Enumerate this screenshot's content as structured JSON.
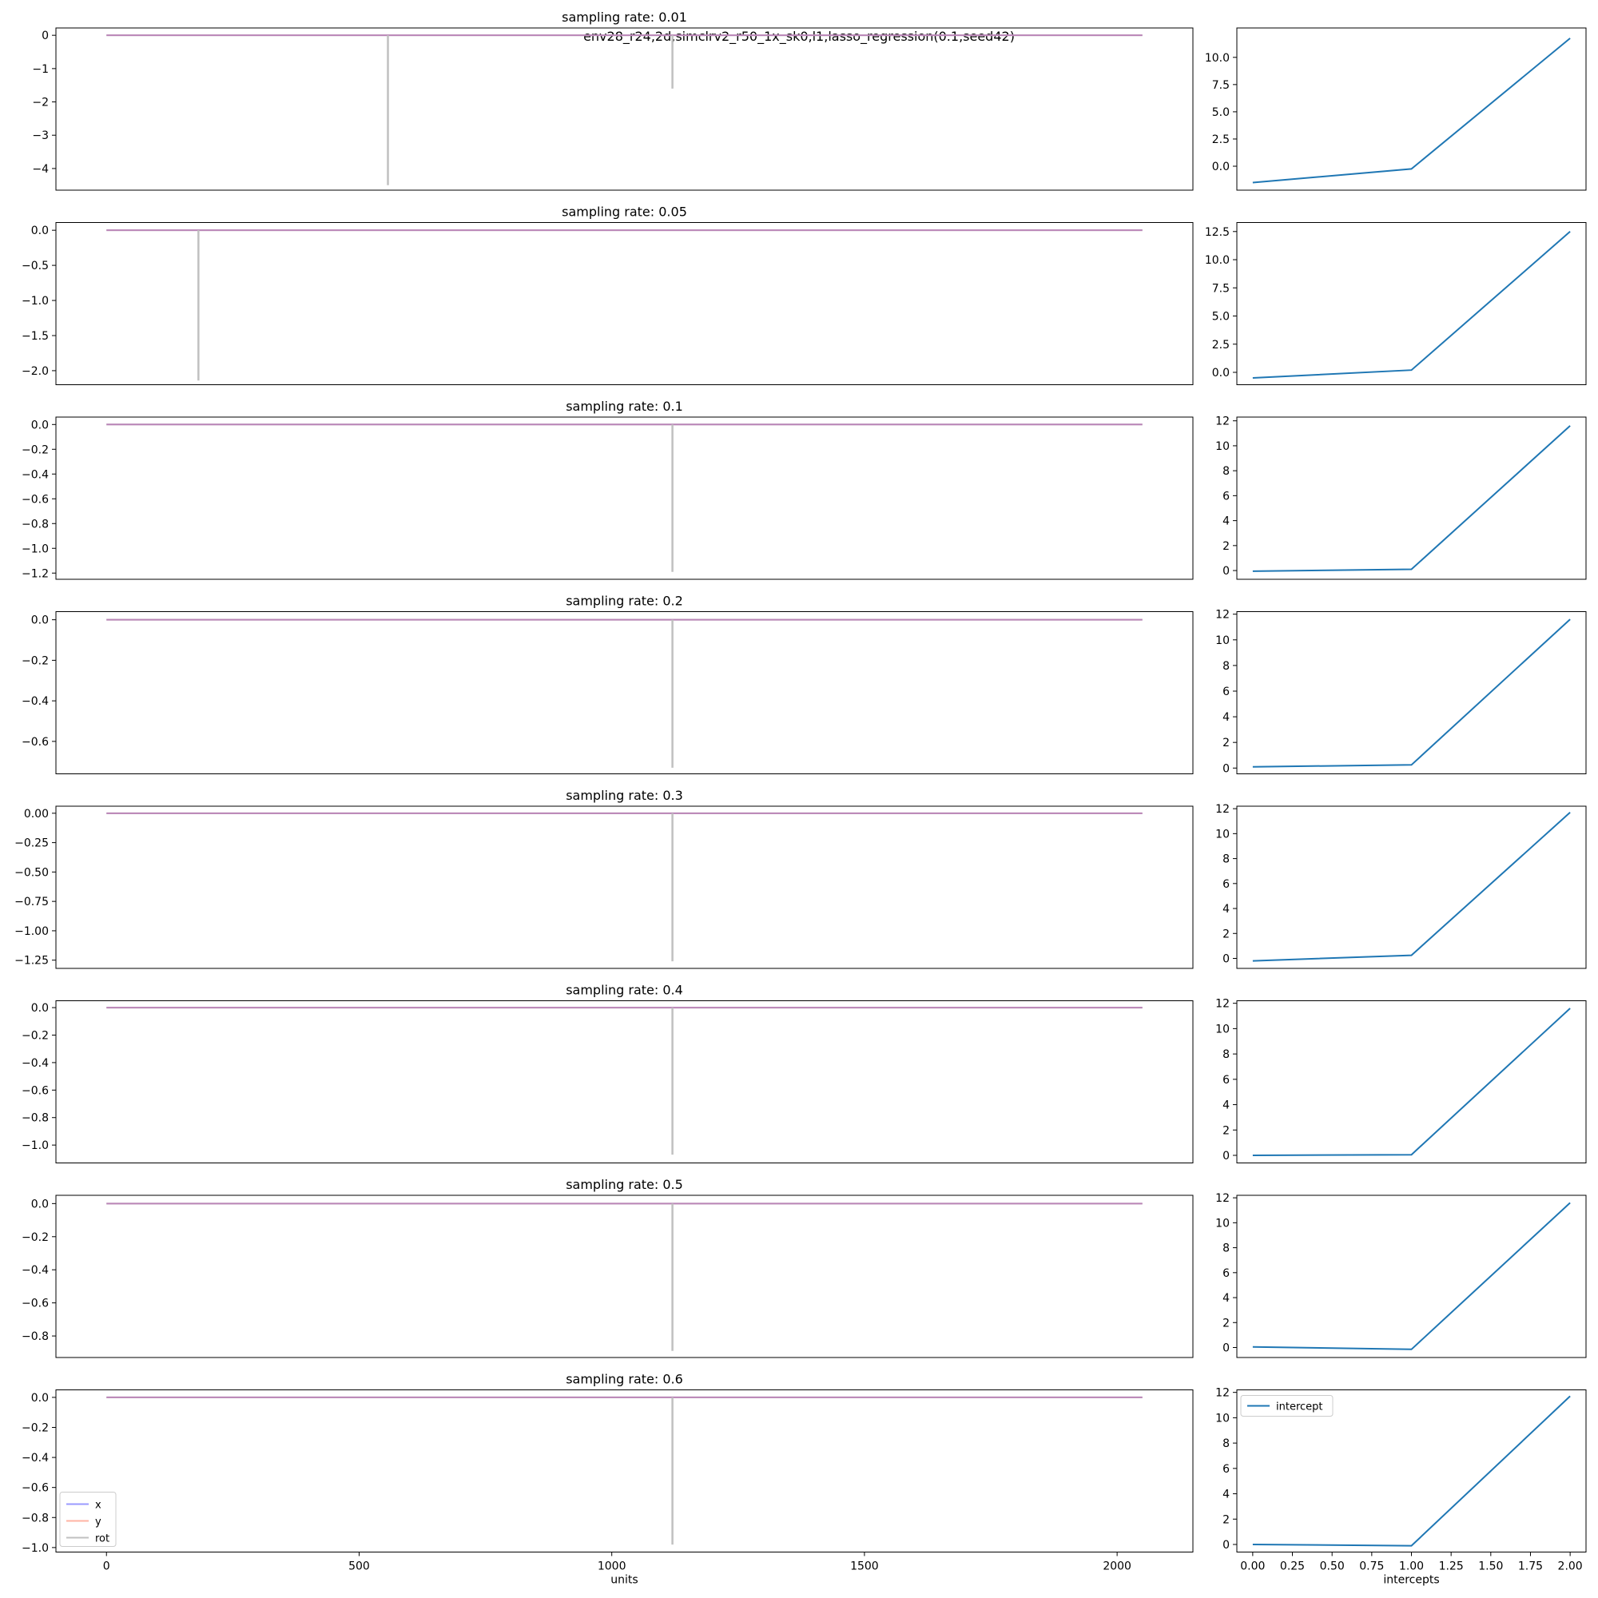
{
  "figure": {
    "suptitle": "env28_r24,2d,simclrv2_r50_1x_sk0,l1,lasso_regression(0.1,seed42)"
  },
  "colors": {
    "x": "#9a9aff",
    "y": "#ffb3a3",
    "rot": "#c0c0c0",
    "intercept": "#1f77b4",
    "overlap": "#bb86b8"
  },
  "chart_data": {
    "type": "line",
    "left_panels": {
      "xlabel": "units",
      "xlim": [
        -100,
        2150
      ],
      "xticks": [
        0,
        500,
        1000,
        1500,
        2000
      ],
      "x_range": [
        0,
        2050
      ],
      "series_names": [
        "x",
        "y",
        "rot"
      ],
      "legend_placement": "lower left",
      "panels": [
        {
          "title": "sampling rate: 0.01",
          "ylim": [
            -4.65,
            0.22
          ],
          "yticks": [
            0,
            -1,
            -2,
            -3,
            -4
          ],
          "tick_labels": [
            "0",
            "−1",
            "−2",
            "−3",
            "−4"
          ],
          "spikes": [
            {
              "unit": 557,
              "value": -4.5
            },
            {
              "unit": 1120,
              "value": -1.6
            }
          ]
        },
        {
          "title": "sampling rate: 0.05",
          "ylim": [
            -2.2,
            0.11
          ],
          "yticks": [
            0,
            -0.5,
            -1,
            -1.5,
            -2
          ],
          "tick_labels": [
            "0.0",
            "−0.5",
            "−1.0",
            "−1.5",
            "−2.0"
          ],
          "spikes": [
            {
              "unit": 182,
              "value": -2.14
            }
          ]
        },
        {
          "title": "sampling rate: 0.1",
          "ylim": [
            -1.25,
            0.06
          ],
          "yticks": [
            0,
            -0.2,
            -0.4,
            -0.6,
            -0.8,
            -1.0,
            -1.2
          ],
          "tick_labels": [
            "0.0",
            "−0.2",
            "−0.4",
            "−0.6",
            "−0.8",
            "−1.0",
            "−1.2"
          ],
          "spikes": [
            {
              "unit": 1120,
              "value": -1.19
            }
          ]
        },
        {
          "title": "sampling rate: 0.2",
          "ylim": [
            -0.76,
            0.04
          ],
          "yticks": [
            0,
            -0.2,
            -0.4,
            -0.6
          ],
          "tick_labels": [
            "0.0",
            "−0.2",
            "−0.4",
            "−0.6"
          ],
          "spikes": [
            {
              "unit": 1120,
              "value": -0.73
            }
          ]
        },
        {
          "title": "sampling rate: 0.3",
          "ylim": [
            -1.32,
            0.06
          ],
          "yticks": [
            0,
            -0.25,
            -0.5,
            -0.75,
            -1.0,
            -1.25
          ],
          "tick_labels": [
            "0.00",
            "−0.25",
            "−0.50",
            "−0.75",
            "−1.00",
            "−1.25"
          ],
          "spikes": [
            {
              "unit": 1120,
              "value": -1.26
            }
          ]
        },
        {
          "title": "sampling rate: 0.4",
          "ylim": [
            -1.13,
            0.05
          ],
          "yticks": [
            0,
            -0.2,
            -0.4,
            -0.6,
            -0.8,
            -1.0
          ],
          "tick_labels": [
            "0.0",
            "−0.2",
            "−0.4",
            "−0.6",
            "−0.8",
            "−1.0"
          ],
          "spikes": [
            {
              "unit": 1120,
              "value": -1.07
            }
          ]
        },
        {
          "title": "sampling rate: 0.5",
          "ylim": [
            -0.93,
            0.05
          ],
          "yticks": [
            0,
            -0.2,
            -0.4,
            -0.6,
            -0.8
          ],
          "tick_labels": [
            "0.0",
            "−0.2",
            "−0.4",
            "−0.6",
            "−0.8"
          ],
          "spikes": [
            {
              "unit": 1120,
              "value": -0.89
            }
          ]
        },
        {
          "title": "sampling rate: 0.6",
          "ylim": [
            -1.03,
            0.05
          ],
          "yticks": [
            0,
            -0.2,
            -0.4,
            -0.6,
            -0.8,
            -1.0
          ],
          "tick_labels": [
            "0.0",
            "−0.2",
            "−0.4",
            "−0.6",
            "−0.8",
            "−1.0"
          ],
          "spikes": [
            {
              "unit": 1120,
              "value": -0.98
            }
          ]
        }
      ]
    },
    "right_panels": {
      "xlabel": "intercepts",
      "xlim": [
        -0.1,
        2.1
      ],
      "xticks": [
        0,
        0.25,
        0.5,
        0.75,
        1.0,
        1.25,
        1.5,
        1.75,
        2.0
      ],
      "xtick_labels": [
        "0.00",
        "0.25",
        "0.50",
        "0.75",
        "1.00",
        "1.25",
        "1.50",
        "1.75",
        "2.00"
      ],
      "x": [
        0,
        1,
        2
      ],
      "series_name": "intercept",
      "legend_placement": "upper left",
      "panels": [
        {
          "ylim": [
            -2.2,
            12.7
          ],
          "yticks": [
            0,
            2.5,
            5,
            7.5,
            10
          ],
          "tick_labels": [
            "0.0",
            "2.5",
            "5.0",
            "7.5",
            "10.0"
          ],
          "values": [
            -1.5,
            -0.25,
            11.75
          ]
        },
        {
          "ylim": [
            -1.1,
            13.3
          ],
          "yticks": [
            0,
            2.5,
            5,
            7.5,
            10,
            12.5
          ],
          "tick_labels": [
            "0.0",
            "2.5",
            "5.0",
            "7.5",
            "10.0",
            "12.5"
          ],
          "values": [
            -0.5,
            0.2,
            12.5
          ]
        },
        {
          "ylim": [
            -0.7,
            12.3
          ],
          "yticks": [
            0,
            2,
            4,
            6,
            8,
            10,
            12
          ],
          "tick_labels": [
            "0",
            "2",
            "4",
            "6",
            "8",
            "10",
            "12"
          ],
          "values": [
            -0.05,
            0.1,
            11.6
          ]
        },
        {
          "ylim": [
            -0.45,
            12.2
          ],
          "yticks": [
            0,
            2,
            4,
            6,
            8,
            10,
            12
          ],
          "tick_labels": [
            "0",
            "2",
            "4",
            "6",
            "8",
            "10",
            "12"
          ],
          "values": [
            0.1,
            0.25,
            11.6
          ]
        },
        {
          "ylim": [
            -0.8,
            12.2
          ],
          "yticks": [
            0,
            2,
            4,
            6,
            8,
            10,
            12
          ],
          "tick_labels": [
            "0",
            "2",
            "4",
            "6",
            "8",
            "10",
            "12"
          ],
          "values": [
            -0.2,
            0.25,
            11.7
          ]
        },
        {
          "ylim": [
            -0.6,
            12.2
          ],
          "yticks": [
            0,
            2,
            4,
            6,
            8,
            10,
            12
          ],
          "tick_labels": [
            "0",
            "2",
            "4",
            "6",
            "8",
            "10",
            "12"
          ],
          "values": [
            0.0,
            0.05,
            11.6
          ]
        },
        {
          "ylim": [
            -0.8,
            12.2
          ],
          "yticks": [
            0,
            2,
            4,
            6,
            8,
            10,
            12
          ],
          "tick_labels": [
            "0",
            "2",
            "4",
            "6",
            "8",
            "10",
            "12"
          ],
          "values": [
            0.05,
            -0.15,
            11.6
          ]
        },
        {
          "ylim": [
            -0.6,
            12.2
          ],
          "yticks": [
            0,
            2,
            4,
            6,
            8,
            10,
            12
          ],
          "tick_labels": [
            "0",
            "2",
            "4",
            "6",
            "8",
            "10",
            "12"
          ],
          "values": [
            0.0,
            -0.1,
            11.7
          ]
        }
      ]
    }
  }
}
